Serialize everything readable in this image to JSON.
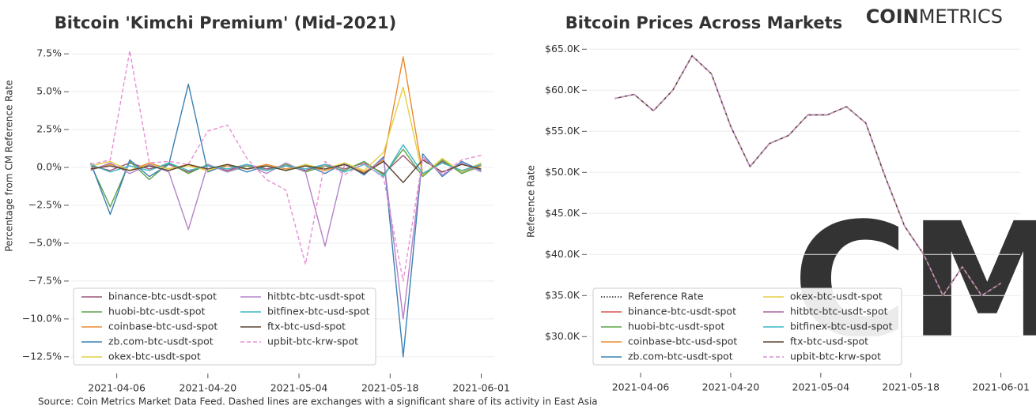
{
  "chart_data": [
    {
      "type": "line",
      "title": "Bitcoin 'Kimchi Premium' (Mid-2021)",
      "ylabel": "Percentage from CM Reference Rate",
      "x": [
        "2021-04-02",
        "2021-04-05",
        "2021-04-08",
        "2021-04-11",
        "2021-04-14",
        "2021-04-17",
        "2021-04-20",
        "2021-04-23",
        "2021-04-26",
        "2021-04-29",
        "2021-05-02",
        "2021-05-05",
        "2021-05-08",
        "2021-05-11",
        "2021-05-14",
        "2021-05-17",
        "2021-05-20",
        "2021-05-23",
        "2021-05-26",
        "2021-05-29",
        "2021-06-01"
      ],
      "xlim": [
        "2021-03-30",
        "2021-06-03"
      ],
      "xticks": [
        "2021-04-06",
        "2021-04-20",
        "2021-05-04",
        "2021-05-18",
        "2021-06-01"
      ],
      "ylim": [
        -13.5,
        8.5
      ],
      "yticks": [
        {
          "value": 7.5,
          "label": "7.5%"
        },
        {
          "value": 5.0,
          "label": "5.0%"
        },
        {
          "value": 2.5,
          "label": "2.5%"
        },
        {
          "value": 0.0,
          "label": "0.0%"
        },
        {
          "value": -2.5,
          "label": "−2.5%"
        },
        {
          "value": -5.0,
          "label": "−5.0%"
        },
        {
          "value": -7.5,
          "label": "−7.5%"
        },
        {
          "value": -10.0,
          "label": "−10.0%"
        },
        {
          "value": -12.5,
          "label": "−12.5%"
        }
      ],
      "grid": true,
      "legend": "lower left",
      "series": [
        {
          "name": "binance-btc-usdt-spot",
          "color": "#9c5478",
          "dash": "solid",
          "values": [
            0.1,
            -0.2,
            0.3,
            -0.1,
            0.2,
            -0.3,
            0.1,
            -0.2,
            0.2,
            -0.1,
            0.1,
            -0.2,
            0.2,
            -0.1,
            0.3,
            -0.4,
            0.8,
            -0.5,
            0.4,
            -0.3,
            0.2
          ]
        },
        {
          "name": "huobi-btc-usdt-spot",
          "color": "#5ba345",
          "dash": "solid",
          "values": [
            0.2,
            -2.6,
            0.4,
            -0.8,
            0.3,
            -0.4,
            0.2,
            -0.3,
            0.1,
            -0.2,
            0.2,
            -0.3,
            0.1,
            -0.2,
            0.4,
            -0.5,
            1.2,
            -0.6,
            0.5,
            -0.4,
            0.1
          ]
        },
        {
          "name": "coinbase-btc-usd-spot",
          "color": "#ea8a2e",
          "dash": "solid",
          "values": [
            -0.1,
            0.2,
            -0.2,
            0.3,
            -0.1,
            0.2,
            -0.2,
            0.1,
            -0.1,
            0.2,
            -0.1,
            0.1,
            -0.2,
            0.2,
            -0.3,
            0.5,
            7.3,
            -0.4,
            0.3,
            -0.2,
            0.1
          ]
        },
        {
          "name": "zb.com-btc-usdt-spot",
          "color": "#3a80b3",
          "dash": "solid",
          "values": [
            0.3,
            -3.1,
            0.5,
            -0.6,
            0.2,
            5.5,
            -0.3,
            0.2,
            -0.3,
            0.1,
            -0.2,
            0.2,
            -0.4,
            0.3,
            -0.5,
            0.7,
            -12.5,
            0.9,
            -0.6,
            0.4,
            -0.2
          ]
        },
        {
          "name": "okex-btc-usdt-spot",
          "color": "#e3cf43",
          "dash": "solid",
          "values": [
            0.1,
            0.4,
            -0.2,
            0.2,
            -0.1,
            0.1,
            -0.2,
            0.2,
            -0.1,
            0.1,
            -0.2,
            0.2,
            -0.1,
            0.3,
            -0.2,
            1.0,
            5.3,
            -0.5,
            0.6,
            -0.3,
            0.3
          ]
        },
        {
          "name": "hitbtc-btc-usdt-spot",
          "color": "#b383c9",
          "dash": "solid",
          "values": [
            -0.2,
            0.3,
            -0.4,
            0.2,
            -0.3,
            -4.1,
            0.2,
            -0.3,
            0.2,
            -0.4,
            0.3,
            -0.3,
            -5.2,
            0.2,
            -0.4,
            0.6,
            -10.0,
            0.7,
            -0.5,
            0.3,
            -0.3
          ]
        },
        {
          "name": "bitfinex-btc-usd-spot",
          "color": "#3cb6c6",
          "dash": "solid",
          "values": [
            0.2,
            -0.3,
            0.1,
            -0.2,
            0.3,
            -0.2,
            0.1,
            -0.1,
            0.2,
            -0.2,
            0.1,
            -0.1,
            0.2,
            -0.3,
            0.2,
            -0.6,
            1.5,
            -0.4,
            0.3,
            -0.2,
            0.2
          ]
        },
        {
          "name": "ftx-btc-usd-spot",
          "color": "#5b4331",
          "dash": "solid",
          "values": [
            -0.1,
            0.1,
            -0.2,
            0.1,
            -0.2,
            0.2,
            -0.1,
            0.2,
            -0.1,
            0.1,
            -0.2,
            0.1,
            -0.1,
            0.2,
            -0.4,
            0.4,
            -1.0,
            0.5,
            -0.3,
            0.2,
            -0.1
          ]
        },
        {
          "name": "upbit-btc-krw-spot",
          "color": "#e88fd3",
          "dash": "dashed",
          "values": [
            0.2,
            0.5,
            7.7,
            0.3,
            0.4,
            0.2,
            2.4,
            2.8,
            0.6,
            -0.8,
            -1.5,
            -6.4,
            0.4,
            -0.5,
            0.3,
            -0.7,
            -7.5,
            0.6,
            -0.4,
            0.5,
            0.8
          ]
        }
      ]
    },
    {
      "type": "line",
      "title": "Bitcoin Prices Across Markets",
      "ylabel": "Reference Rate",
      "x": [
        "2021-04-02",
        "2021-04-05",
        "2021-04-08",
        "2021-04-11",
        "2021-04-14",
        "2021-04-17",
        "2021-04-20",
        "2021-04-23",
        "2021-04-26",
        "2021-04-29",
        "2021-05-02",
        "2021-05-05",
        "2021-05-08",
        "2021-05-11",
        "2021-05-14",
        "2021-05-17",
        "2021-05-20",
        "2021-05-23",
        "2021-05-26",
        "2021-05-29",
        "2021-06-01"
      ],
      "xlim": [
        "2021-03-29",
        "2021-06-04"
      ],
      "xticks": [
        "2021-04-06",
        "2021-04-20",
        "2021-05-04",
        "2021-05-18",
        "2021-06-01"
      ],
      "ylim": [
        25800,
        65700
      ],
      "yticks": [
        {
          "value": 65000,
          "label": "$65.0K"
        },
        {
          "value": 60000,
          "label": "$60.0K"
        },
        {
          "value": 55000,
          "label": "$55.0K"
        },
        {
          "value": 50000,
          "label": "$50.0K"
        },
        {
          "value": 45000,
          "label": "$45.0K"
        },
        {
          "value": 40000,
          "label": "$40.0K"
        },
        {
          "value": 35000,
          "label": "$35.0K"
        },
        {
          "value": 30000,
          "label": "$30.0K"
        }
      ],
      "grid": true,
      "legend": "lower left",
      "series": [
        {
          "name": "Reference Rate",
          "color": "#222222",
          "dash": "dotted",
          "values": [
            59000,
            59500,
            57500,
            60000,
            64200,
            62000,
            55600,
            50700,
            53500,
            54500,
            57000,
            57000,
            58000,
            56000,
            49500,
            43500,
            40000,
            35000,
            38500,
            35000,
            36500
          ]
        },
        {
          "name": "binance-btc-usdt-spot",
          "color": "#d9534f",
          "dash": "solid",
          "values": [
            59000,
            59500,
            57500,
            60000,
            64200,
            62000,
            55600,
            50700,
            53500,
            54500,
            57000,
            57000,
            58000,
            56000,
            49500,
            43500,
            40000,
            35000,
            38500,
            35000,
            36500
          ]
        },
        {
          "name": "huobi-btc-usdt-spot",
          "color": "#5ba345",
          "dash": "solid",
          "values": [
            59000,
            59500,
            57500,
            60000,
            64200,
            62000,
            55600,
            50700,
            53500,
            54500,
            57000,
            57000,
            58000,
            56000,
            49500,
            43500,
            40000,
            35000,
            38500,
            35000,
            36500
          ]
        },
        {
          "name": "coinbase-btc-usd-spot",
          "color": "#ea8a2e",
          "dash": "solid",
          "values": [
            59000,
            59500,
            57500,
            60000,
            64200,
            62000,
            55600,
            50700,
            53500,
            54500,
            57000,
            57000,
            58000,
            56000,
            49500,
            43500,
            40000,
            35000,
            38500,
            35000,
            36500
          ]
        },
        {
          "name": "zb.com-btc-usdt-spot",
          "color": "#3a80b3",
          "dash": "solid",
          "values": [
            59000,
            59500,
            57500,
            60000,
            64200,
            62000,
            55600,
            50700,
            53500,
            54500,
            57000,
            57000,
            58000,
            56000,
            49500,
            43500,
            40000,
            35000,
            38500,
            35000,
            36500
          ]
        },
        {
          "name": "okex-btc-usdt-spot",
          "color": "#e3cf43",
          "dash": "solid",
          "values": [
            59000,
            59500,
            57500,
            60000,
            64200,
            62000,
            55600,
            50700,
            53500,
            54500,
            57000,
            57000,
            58000,
            56000,
            49500,
            43500,
            40000,
            35000,
            38500,
            35000,
            36500
          ]
        },
        {
          "name": "hitbtc-btc-usdt-spot",
          "color": "#a9659f",
          "dash": "solid",
          "values": [
            59000,
            59500,
            57500,
            60000,
            64200,
            62000,
            55600,
            50700,
            53500,
            54500,
            57000,
            57000,
            58000,
            56000,
            49500,
            43500,
            40000,
            35000,
            38500,
            35000,
            36500
          ]
        },
        {
          "name": "bitfinex-btc-usd-spot",
          "color": "#3cb6c6",
          "dash": "solid",
          "values": [
            59000,
            59500,
            57500,
            60000,
            64200,
            62000,
            55600,
            50700,
            53500,
            54500,
            57000,
            57000,
            58000,
            56000,
            49500,
            43500,
            40000,
            35000,
            38500,
            35000,
            36500
          ]
        },
        {
          "name": "ftx-btc-usd-spot",
          "color": "#5b4331",
          "dash": "solid",
          "values": [
            59000,
            59500,
            57500,
            60000,
            64200,
            62000,
            55600,
            50700,
            53500,
            54500,
            57000,
            57000,
            58000,
            56000,
            49500,
            43500,
            40000,
            35000,
            38500,
            35000,
            36500
          ]
        },
        {
          "name": "upbit-btc-krw-spot",
          "color": "#d892d0",
          "dash": "dashed",
          "values": [
            59000,
            59500,
            57500,
            60000,
            64200,
            62000,
            55600,
            50700,
            53500,
            54500,
            57000,
            57000,
            58000,
            56000,
            49500,
            43500,
            40000,
            35000,
            38500,
            35000,
            36500
          ]
        }
      ]
    }
  ],
  "logo": {
    "bold": "COIN",
    "light": "METRICS"
  },
  "watermark": "CM",
  "source": "Source: Coin Metrics Market Data Feed. Dashed lines are exchanges with a significant share of its activity in East Asia"
}
